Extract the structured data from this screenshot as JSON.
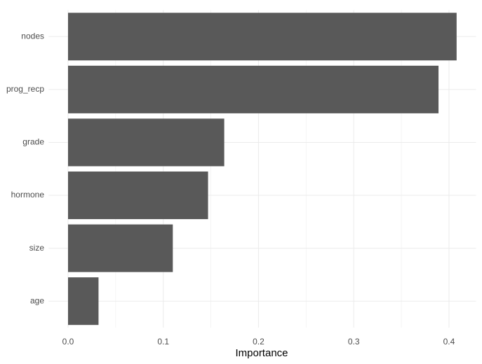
{
  "chart_data": {
    "type": "barh",
    "x_label": "Importance",
    "categories": [
      "nodes",
      "prog_recp",
      "grade",
      "hormone",
      "size",
      "age"
    ],
    "values": [
      0.408,
      0.389,
      0.164,
      0.147,
      0.11,
      0.032
    ],
    "color": "#595959",
    "xlim": [
      -0.0204,
      0.4284
    ],
    "xticks": [
      {
        "value": 0,
        "label": "0.0"
      },
      0.1,
      0.2,
      0.3,
      0.4
    ],
    "minor_xticks": [
      0.05,
      0.15,
      0.25,
      0.35
    ],
    "grid": true
  }
}
